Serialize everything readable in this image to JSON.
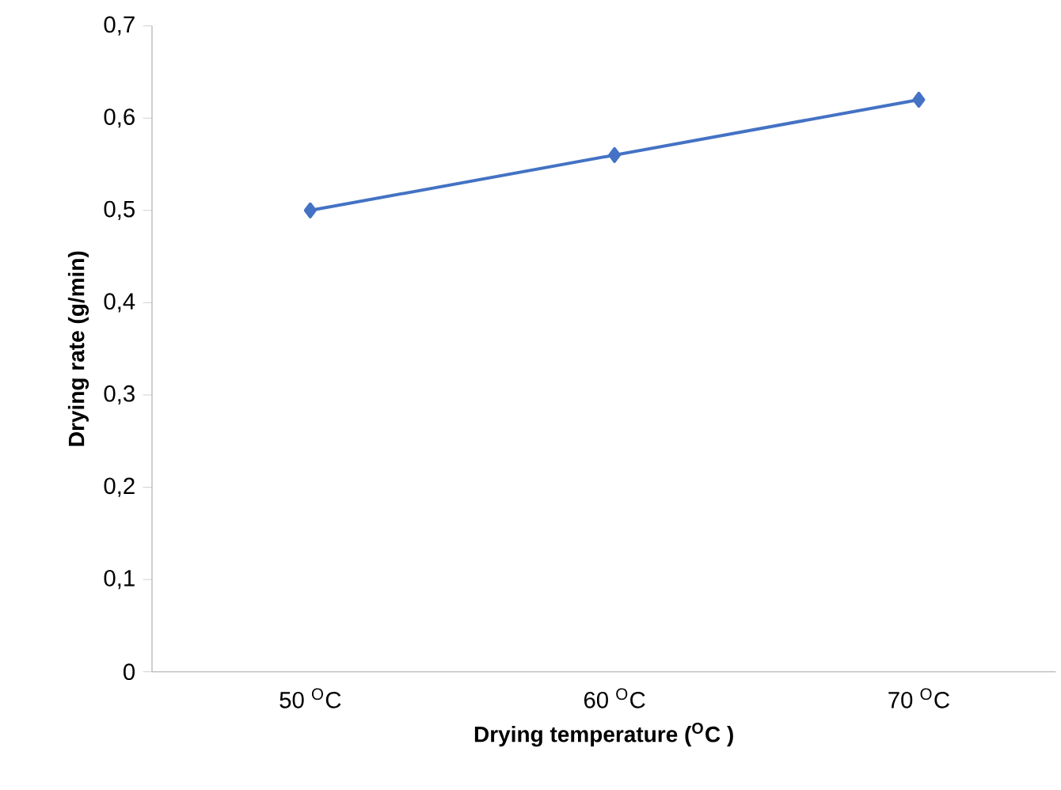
{
  "chart_data": {
    "type": "line",
    "xlabel": "Drying temperature  ($^{O}$C )",
    "ylabel": "Drying rate (g/min)",
    "categories": [
      "50 $^{O}$C",
      "60 $^{O}$C",
      "70 $^{O}$C"
    ],
    "series": [
      {
        "color": "#4472c4",
        "values": [
          0.5,
          0.56,
          0.62
        ]
      }
    ],
    "ylim": [
      0,
      0.7
    ],
    "yticks": [
      {
        "value": 0,
        "label": "0"
      },
      {
        "value": 0.1,
        "label": "0,1"
      },
      {
        "value": 0.2,
        "label": "0,2"
      },
      {
        "value": 0.3,
        "label": "0,3"
      },
      {
        "value": 0.4,
        "label": "0,4"
      },
      {
        "value": 0.5,
        "label": "0,5"
      },
      {
        "value": 0.6,
        "label": "0,6"
      },
      {
        "value": 0.7,
        "label": "0,7"
      }
    ],
    "marker": "diamond",
    "grid": false
  }
}
